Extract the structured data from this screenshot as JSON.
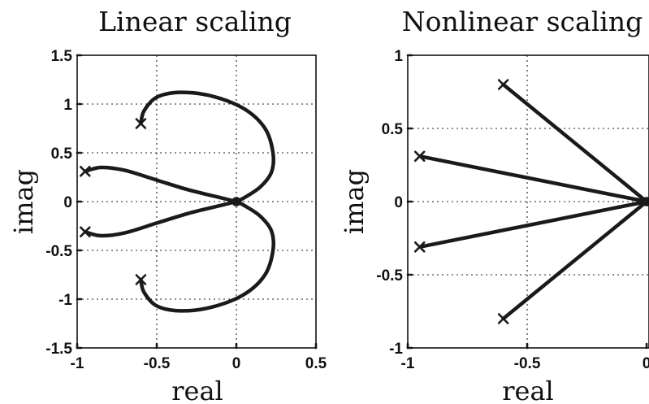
{
  "chart_data": [
    {
      "type": "line",
      "title": "Linear scaling",
      "xlabel": "real",
      "ylabel": "imag",
      "xlim": [
        -1,
        0.5
      ],
      "ylim": [
        -1.5,
        1.5
      ],
      "xticks": [
        "-1",
        "-0.5",
        "0",
        "0.5"
      ],
      "yticks": [
        "1.5",
        "1",
        "0.5",
        "0",
        "-0.5",
        "-1",
        "-1.5"
      ],
      "xtick_values": [
        -1,
        -0.5,
        0,
        0.5
      ],
      "ytick_values": [
        1.5,
        1,
        0.5,
        0,
        -0.5,
        -1,
        -1.5
      ],
      "grid": true,
      "poles": [
        [
          -0.6,
          0.8
        ],
        [
          -0.95,
          0.31
        ],
        [
          -0.95,
          -0.31
        ],
        [
          -0.6,
          -0.8
        ]
      ],
      "zeros": [
        [
          0,
          0
        ]
      ],
      "series": [
        {
          "x": [
            -0.6,
            -0.58,
            -0.5,
            -0.35,
            -0.15,
            0.05,
            0.18,
            0.23,
            0.22,
            0.15,
            0.05,
            0.0
          ],
          "y": [
            0.8,
            0.93,
            1.07,
            1.12,
            1.08,
            0.95,
            0.75,
            0.5,
            0.3,
            0.15,
            0.04,
            0.0
          ]
        },
        {
          "x": [
            -0.95,
            -0.85,
            -0.7,
            -0.5,
            -0.3,
            -0.1,
            0.0
          ],
          "y": [
            0.31,
            0.35,
            0.32,
            0.22,
            0.12,
            0.04,
            0.0
          ]
        },
        {
          "x": [
            -0.95,
            -0.85,
            -0.7,
            -0.5,
            -0.3,
            -0.1,
            0.0
          ],
          "y": [
            -0.31,
            -0.35,
            -0.32,
            -0.22,
            -0.12,
            -0.04,
            0.0
          ]
        },
        {
          "x": [
            -0.6,
            -0.58,
            -0.5,
            -0.35,
            -0.15,
            0.05,
            0.18,
            0.23,
            0.22,
            0.15,
            0.05,
            0.0
          ],
          "y": [
            -0.8,
            -0.93,
            -1.07,
            -1.12,
            -1.08,
            -0.95,
            -0.75,
            -0.5,
            -0.3,
            -0.15,
            -0.04,
            0.0
          ]
        }
      ]
    },
    {
      "type": "line",
      "title": "Nonlinear scaling",
      "xlabel": "real",
      "ylabel": "imag",
      "xlim": [
        -1,
        0
      ],
      "ylim": [
        -1,
        1
      ],
      "xticks": [
        "-1",
        "-0.5",
        "0"
      ],
      "yticks": [
        "1",
        "0.5",
        "0",
        "-0.5",
        "-1"
      ],
      "xtick_values": [
        -1,
        -0.5,
        0
      ],
      "ytick_values": [
        1,
        0.5,
        0,
        -0.5,
        -1
      ],
      "grid": true,
      "poles": [
        [
          -0.6,
          0.8
        ],
        [
          -0.95,
          0.31
        ],
        [
          -0.95,
          -0.31
        ],
        [
          -0.6,
          -0.8
        ]
      ],
      "zeros": [
        [
          0,
          0
        ]
      ],
      "series": [
        {
          "x": [
            -0.6,
            0.0
          ],
          "y": [
            0.8,
            0.0
          ]
        },
        {
          "x": [
            -0.95,
            0.0
          ],
          "y": [
            0.31,
            0.0
          ]
        },
        {
          "x": [
            -0.95,
            0.0
          ],
          "y": [
            -0.31,
            0.0
          ]
        },
        {
          "x": [
            -0.6,
            0.0
          ],
          "y": [
            -0.8,
            0.0
          ]
        }
      ]
    }
  ]
}
